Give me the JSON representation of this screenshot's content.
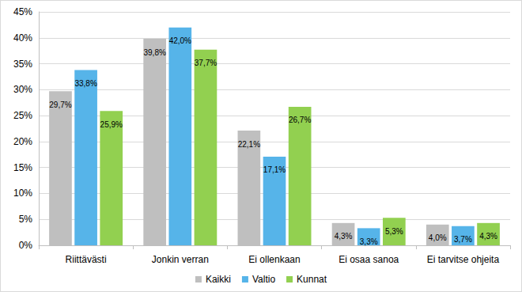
{
  "chart_data": {
    "type": "bar",
    "categories": [
      "Riittävästi",
      "Jonkin verran",
      "Ei ollenkaan",
      "Ei osaa sanoa",
      "Ei tarvitse ohjeita"
    ],
    "series": [
      {
        "name": "Kaikki",
        "color": "#BFBFBF",
        "values": [
          29.7,
          39.8,
          22.1,
          4.3,
          4.0
        ],
        "value_labels": [
          "29,7%",
          "39,8%",
          "22,1%",
          "4,3%",
          "4,0%"
        ]
      },
      {
        "name": "Valtio",
        "color": "#56B4E9",
        "values": [
          33.8,
          42.0,
          17.1,
          3.3,
          3.7
        ],
        "value_labels": [
          "33,8%",
          "42,0%",
          "17,1%",
          "3,3%",
          "3,7%"
        ]
      },
      {
        "name": "Kunnat",
        "color": "#92D050",
        "values": [
          25.9,
          37.7,
          26.7,
          5.3,
          4.3
        ],
        "value_labels": [
          "25,9%",
          "37,7%",
          "26,7%",
          "5,3%",
          "4,3%"
        ]
      }
    ],
    "ylim": [
      0,
      45
    ],
    "yticks": [
      {
        "value": 0,
        "label": "0%"
      },
      {
        "value": 5,
        "label": "5%"
      },
      {
        "value": 10,
        "label": "10%"
      },
      {
        "value": 15,
        "label": "15%"
      },
      {
        "value": 20,
        "label": "20%"
      },
      {
        "value": 25,
        "label": "25%"
      },
      {
        "value": 30,
        "label": "30%"
      },
      {
        "value": 35,
        "label": "35%"
      },
      {
        "value": 40,
        "label": "40%"
      },
      {
        "value": 45,
        "label": "45%"
      }
    ],
    "grid": true,
    "legend": "bottom",
    "data_labels": true
  }
}
